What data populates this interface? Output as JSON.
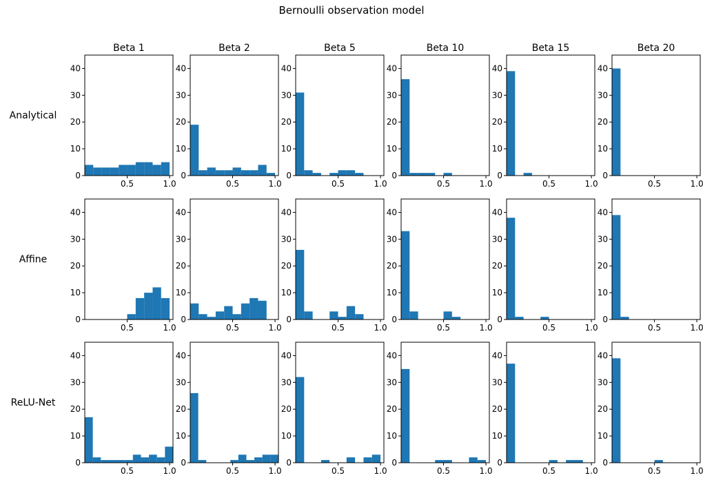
{
  "figure": {
    "title": "Bernoulli observation model"
  },
  "chart_data": {
    "type": "histogram-grid",
    "title": "Bernoulli observation model",
    "columns": [
      "Beta 1",
      "Beta 2",
      "Beta 5",
      "Beta 10",
      "Beta 15",
      "Beta 20"
    ],
    "rows": [
      "Analytical",
      "Affine",
      "ReLU-Net"
    ],
    "xlim": [
      0.0,
      1.04
    ],
    "ylim": [
      0,
      45
    ],
    "x_ticks": [
      0.5,
      1.0
    ],
    "x_tick_labels": [
      "0.5",
      "1.0"
    ],
    "y_ticks": [
      0,
      10,
      20,
      30,
      40
    ],
    "y_tick_labels": [
      "0",
      "10",
      "20",
      "30",
      "40"
    ],
    "bins": 10,
    "panels": [
      [
        {
          "bin_start": 0.0,
          "bin_end": 1.0,
          "counts": [
            4,
            3,
            3,
            3,
            4,
            4,
            5,
            5,
            4,
            5
          ]
        },
        {
          "bin_start": 0.0,
          "bin_end": 1.0,
          "counts": [
            19,
            2,
            3,
            2,
            2,
            3,
            2,
            2,
            4,
            1
          ]
        },
        {
          "bin_start": 0.0,
          "bin_end": 1.0,
          "counts": [
            31,
            2,
            1,
            0,
            1,
            2,
            2,
            1,
            0,
            0
          ]
        },
        {
          "bin_start": 0.0,
          "bin_end": 1.0,
          "counts": [
            36,
            1,
            1,
            1,
            0,
            1,
            0,
            0,
            0,
            0
          ]
        },
        {
          "bin_start": 0.0,
          "bin_end": 1.0,
          "counts": [
            39,
            0,
            1,
            0,
            0,
            0,
            0,
            0,
            0,
            0
          ]
        },
        {
          "bin_start": 0.0,
          "bin_end": 1.0,
          "counts": [
            40,
            0,
            0,
            0,
            0,
            0,
            0,
            0,
            0,
            0
          ]
        }
      ],
      [
        {
          "bin_start": 0.5,
          "bin_end": 1.0,
          "counts": [
            2,
            8,
            10,
            12,
            8
          ]
        },
        {
          "bin_start": 0.0,
          "bin_end": 0.9,
          "counts": [
            6,
            2,
            1,
            3,
            5,
            2,
            6,
            8,
            7
          ]
        },
        {
          "bin_start": 0.0,
          "bin_end": 0.8,
          "counts": [
            26,
            3,
            0,
            0,
            3,
            1,
            5,
            2
          ]
        },
        {
          "bin_start": 0.0,
          "bin_end": 0.7,
          "counts": [
            33,
            3,
            0,
            0,
            0,
            3,
            1
          ]
        },
        {
          "bin_start": 0.0,
          "bin_end": 1.0,
          "counts": [
            38,
            1,
            0,
            0,
            1,
            0,
            0,
            0,
            0,
            0
          ]
        },
        {
          "bin_start": 0.0,
          "bin_end": 1.0,
          "counts": [
            39,
            1,
            0,
            0,
            0,
            0,
            0,
            0,
            0,
            0
          ]
        }
      ],
      [
        {
          "bin_start": 0.0,
          "bin_end": 1.04,
          "counts": [
            17,
            2,
            1,
            1,
            1,
            1,
            3,
            2,
            3,
            2,
            6
          ]
        },
        {
          "bin_start": 0.0,
          "bin_end": 1.04,
          "counts": [
            26,
            1,
            0,
            0,
            0,
            1,
            3,
            1,
            2,
            3,
            3
          ]
        },
        {
          "bin_start": 0.0,
          "bin_end": 1.0,
          "counts": [
            32,
            0,
            0,
            1,
            0,
            0,
            2,
            0,
            2,
            3
          ]
        },
        {
          "bin_start": 0.0,
          "bin_end": 1.0,
          "counts": [
            35,
            0,
            0,
            0,
            1,
            1,
            0,
            0,
            2,
            1
          ]
        },
        {
          "bin_start": 0.0,
          "bin_end": 1.0,
          "counts": [
            37,
            0,
            0,
            0,
            0,
            1,
            0,
            1,
            1,
            0
          ]
        },
        {
          "bin_start": 0.0,
          "bin_end": 1.0,
          "counts": [
            39,
            0,
            0,
            0,
            0,
            1,
            0,
            0,
            0,
            0
          ]
        }
      ]
    ],
    "bar_color": "#1f77b4",
    "grid": false,
    "legend": "none"
  }
}
